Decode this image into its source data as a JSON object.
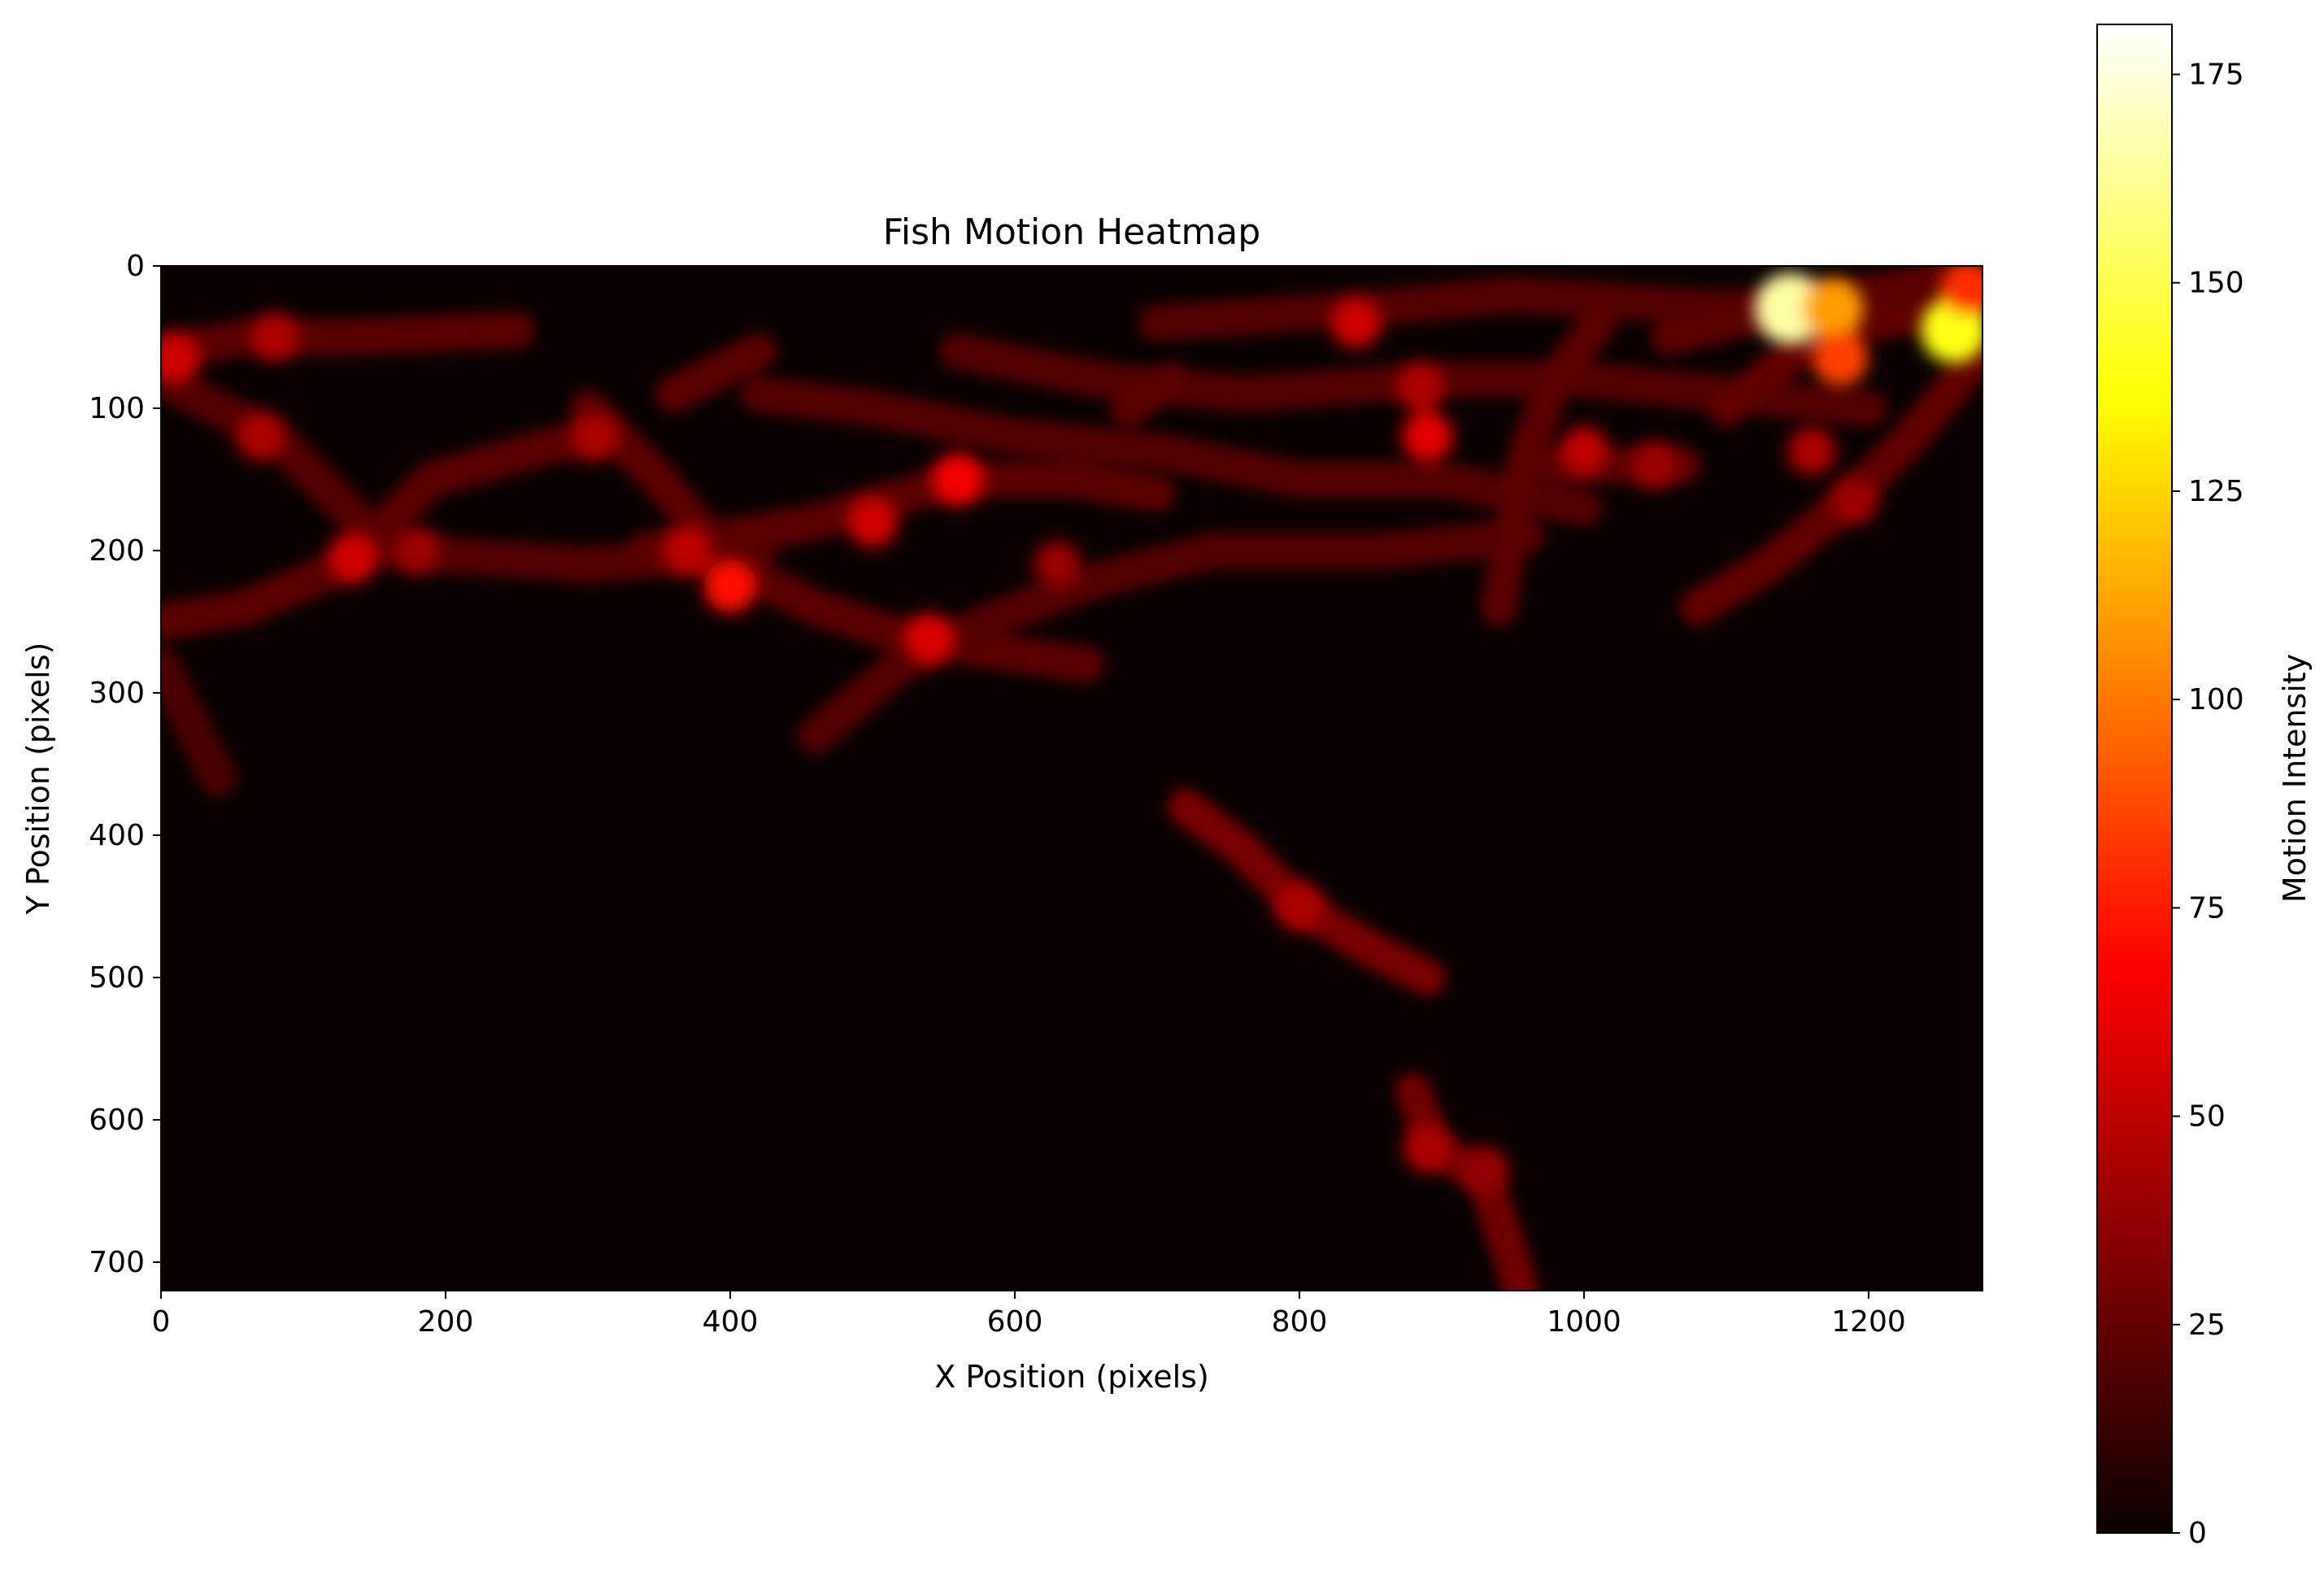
{
  "chart_data": {
    "type": "heatmap",
    "title": "Fish Motion Heatmap",
    "xlabel": "X Position (pixels)",
    "ylabel": "Y Position (pixels)",
    "xlim": [
      0,
      1280
    ],
    "ylim": [
      720,
      0
    ],
    "x_ticks": [
      0,
      200,
      400,
      600,
      800,
      1000,
      1200
    ],
    "y_ticks": [
      0,
      100,
      200,
      300,
      400,
      500,
      600,
      700
    ],
    "colormap": "hot",
    "background_color": "#0b0000",
    "grid": false,
    "colorbar": {
      "label": "Motion Intensity",
      "min": 0,
      "max": 181,
      "ticks": [
        0,
        25,
        50,
        75,
        100,
        125,
        150,
        175
      ],
      "stops": [
        {
          "value": 0,
          "color": "#0b0000"
        },
        {
          "value": 68,
          "color": "#ff0000"
        },
        {
          "value": 136,
          "color": "#ffff00"
        },
        {
          "value": 181,
          "color": "#ffffff"
        }
      ]
    },
    "tracks": [
      {
        "intensity": 22,
        "points": [
          [
            0,
            60
          ],
          [
            60,
            50
          ],
          [
            130,
            50
          ],
          [
            250,
            45
          ]
        ]
      },
      {
        "intensity": 20,
        "points": [
          [
            0,
            80
          ],
          [
            80,
            120
          ],
          [
            130,
            170
          ],
          [
            160,
            200
          ],
          [
            300,
            210
          ],
          [
            420,
            200
          ]
        ]
      },
      {
        "intensity": 22,
        "points": [
          [
            0,
            250
          ],
          [
            60,
            240
          ],
          [
            130,
            210
          ],
          [
            190,
            150
          ],
          [
            260,
            130
          ],
          [
            300,
            120
          ]
        ]
      },
      {
        "intensity": 18,
        "points": [
          [
            0,
            280
          ],
          [
            20,
            320
          ],
          [
            40,
            360
          ]
        ]
      },
      {
        "intensity": 22,
        "points": [
          [
            300,
            100
          ],
          [
            350,
            150
          ],
          [
            400,
            210
          ],
          [
            460,
            240
          ],
          [
            520,
            260
          ],
          [
            580,
            270
          ],
          [
            650,
            280
          ]
        ]
      },
      {
        "intensity": 22,
        "points": [
          [
            360,
            90
          ],
          [
            420,
            60
          ]
        ]
      },
      {
        "intensity": 20,
        "points": [
          [
            420,
            90
          ],
          [
            500,
            100
          ],
          [
            600,
            120
          ],
          [
            700,
            130
          ],
          [
            800,
            150
          ],
          [
            900,
            150
          ],
          [
            1000,
            170
          ]
        ]
      },
      {
        "intensity": 22,
        "points": [
          [
            340,
            200
          ],
          [
            460,
            180
          ],
          [
            560,
            150
          ],
          [
            640,
            150
          ],
          [
            700,
            160
          ]
        ]
      },
      {
        "intensity": 20,
        "points": [
          [
            460,
            330
          ],
          [
            520,
            280
          ],
          [
            580,
            250
          ],
          [
            660,
            220
          ],
          [
            740,
            200
          ],
          [
            860,
            200
          ],
          [
            960,
            190
          ]
        ]
      },
      {
        "intensity": 20,
        "points": [
          [
            560,
            60
          ],
          [
            660,
            80
          ],
          [
            760,
            90
          ],
          [
            900,
            80
          ],
          [
            1000,
            80
          ],
          [
            1100,
            90
          ],
          [
            1200,
            100
          ]
        ]
      },
      {
        "intensity": 20,
        "points": [
          [
            700,
            40
          ],
          [
            850,
            30
          ],
          [
            950,
            20
          ],
          [
            1100,
            30
          ],
          [
            1200,
            25
          ]
        ]
      },
      {
        "intensity": 22,
        "points": [
          [
            680,
            100
          ],
          [
            710,
            80
          ]
        ]
      },
      {
        "intensity": 22,
        "points": [
          [
            940,
            240
          ],
          [
            950,
            180
          ],
          [
            960,
            130
          ],
          [
            980,
            80
          ],
          [
            1010,
            40
          ]
        ]
      },
      {
        "intensity": 22,
        "points": [
          [
            980,
            140
          ],
          [
            1030,
            140
          ],
          [
            1070,
            140
          ]
        ]
      },
      {
        "intensity": 24,
        "points": [
          [
            1080,
            240
          ],
          [
            1130,
            210
          ],
          [
            1180,
            170
          ],
          [
            1230,
            120
          ],
          [
            1280,
            60
          ]
        ]
      },
      {
        "intensity": 24,
        "points": [
          [
            1100,
            100
          ],
          [
            1150,
            60
          ],
          [
            1200,
            40
          ],
          [
            1270,
            30
          ]
        ]
      },
      {
        "intensity": 22,
        "points": [
          [
            1060,
            50
          ],
          [
            1140,
            30
          ],
          [
            1250,
            10
          ]
        ]
      },
      {
        "intensity": 30,
        "points": [
          [
            720,
            380
          ],
          [
            760,
            410
          ],
          [
            800,
            450
          ],
          [
            850,
            480
          ],
          [
            890,
            500
          ]
        ]
      },
      {
        "intensity": 28,
        "points": [
          [
            880,
            580
          ],
          [
            895,
            620
          ],
          [
            930,
            640
          ],
          [
            950,
            700
          ],
          [
            955,
            720
          ]
        ]
      }
    ],
    "hotspots": [
      {
        "x": 10,
        "y": 65,
        "intensity": 55
      },
      {
        "x": 80,
        "y": 50,
        "intensity": 45
      },
      {
        "x": 70,
        "y": 120,
        "intensity": 45
      },
      {
        "x": 135,
        "y": 205,
        "intensity": 55
      },
      {
        "x": 180,
        "y": 200,
        "intensity": 40
      },
      {
        "x": 305,
        "y": 120,
        "intensity": 45
      },
      {
        "x": 370,
        "y": 200,
        "intensity": 50
      },
      {
        "x": 400,
        "y": 225,
        "intensity": 70
      },
      {
        "x": 500,
        "y": 180,
        "intensity": 55
      },
      {
        "x": 560,
        "y": 150,
        "intensity": 65
      },
      {
        "x": 540,
        "y": 262,
        "intensity": 58
      },
      {
        "x": 630,
        "y": 210,
        "intensity": 40
      },
      {
        "x": 840,
        "y": 40,
        "intensity": 55
      },
      {
        "x": 885,
        "y": 85,
        "intensity": 45
      },
      {
        "x": 890,
        "y": 120,
        "intensity": 60
      },
      {
        "x": 1000,
        "y": 130,
        "intensity": 50
      },
      {
        "x": 1050,
        "y": 140,
        "intensity": 40
      },
      {
        "x": 1145,
        "y": 30,
        "intensity": 165
      },
      {
        "x": 1175,
        "y": 30,
        "intensity": 110
      },
      {
        "x": 1180,
        "y": 65,
        "intensity": 85
      },
      {
        "x": 1160,
        "y": 130,
        "intensity": 45
      },
      {
        "x": 1260,
        "y": 45,
        "intensity": 140
      },
      {
        "x": 1270,
        "y": 15,
        "intensity": 80
      },
      {
        "x": 1190,
        "y": 165,
        "intensity": 40
      },
      {
        "x": 800,
        "y": 450,
        "intensity": 45
      },
      {
        "x": 890,
        "y": 620,
        "intensity": 45
      },
      {
        "x": 930,
        "y": 635,
        "intensity": 38
      }
    ]
  }
}
